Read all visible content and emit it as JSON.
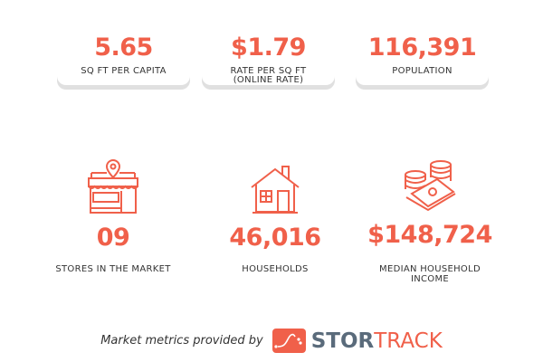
{
  "cards": [
    {
      "value": "5.65",
      "label": "SQ FT PER CAPITA"
    },
    {
      "value": "$1.79",
      "label": "RATE PER SQ FT",
      "label2": "(ONLINE RATE)"
    },
    {
      "value": "116,391",
      "label": "POPULATION"
    }
  ],
  "stats": [
    {
      "icon": "storefront-icon",
      "value": "09",
      "label": "STORES IN THE MARKET"
    },
    {
      "icon": "house-icon",
      "value": "46,016",
      "label": "HOUSEHOLDS"
    },
    {
      "icon": "money-coins-icon",
      "value": "$148,724",
      "label": "MEDIAN HOUSEHOLD",
      "label2": "INCOME"
    }
  ],
  "footer": {
    "text": "Market metrics provided by",
    "brand_a": "STOR",
    "brand_b": "TRACK"
  },
  "colors": {
    "accent": "#f0604a",
    "brand_dark": "#5a6b7b"
  }
}
